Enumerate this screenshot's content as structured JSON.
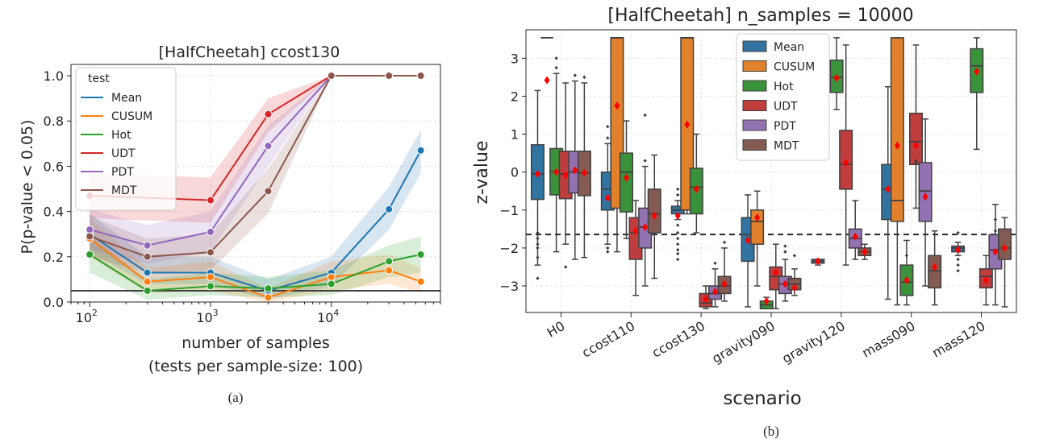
{
  "chart_data": [
    {
      "type": "line",
      "title": "[HalfCheetah] ccost130",
      "xlabel": "number of samples",
      "xlabel2": "(tests per sample-size: 100)",
      "ylabel": "P(p-value < 0.05)",
      "caption": "(a)",
      "x_scale": "log",
      "xlim": [
        70,
        80000
      ],
      "ylim": [
        0,
        1.05
      ],
      "x_ticks": [
        {
          "v": 100,
          "b": "10",
          "e": "2"
        },
        {
          "v": 1000,
          "b": "10",
          "e": "3"
        },
        {
          "v": 10000,
          "b": "10",
          "e": "4"
        }
      ],
      "y_ticks": [
        {
          "v": 0,
          "label": "0.0"
        },
        {
          "v": 0.2,
          "label": "0.2"
        },
        {
          "v": 0.4,
          "label": "0.4"
        },
        {
          "v": 0.6,
          "label": "0.6"
        },
        {
          "v": 0.8,
          "label": "0.8"
        },
        {
          "v": 1.0,
          "label": "1.0"
        }
      ],
      "threshold": 0.05,
      "grid": true,
      "legend_title": "test",
      "legend_position": "upper-left",
      "x": [
        100,
        300,
        1000,
        3000,
        10000,
        30000,
        55000
      ],
      "series": [
        {
          "name": "Mean",
          "color": "#1f77b4",
          "values": [
            0.3,
            0.13,
            0.13,
            0.05,
            0.13,
            0.41,
            0.67
          ],
          "lower": [
            0.22,
            0.08,
            0.08,
            0.01,
            0.07,
            0.32,
            0.57
          ],
          "upper": [
            0.39,
            0.2,
            0.2,
            0.1,
            0.2,
            0.51,
            0.76
          ]
        },
        {
          "name": "CUSUM",
          "color": "#ff7f0e",
          "values": [
            0.28,
            0.09,
            0.11,
            0.02,
            0.11,
            0.14,
            0.09
          ],
          "lower": [
            0.2,
            0.04,
            0.05,
            0.0,
            0.05,
            0.08,
            0.04
          ],
          "upper": [
            0.37,
            0.15,
            0.18,
            0.06,
            0.18,
            0.21,
            0.15
          ]
        },
        {
          "name": "Hot",
          "color": "#2ca02c",
          "values": [
            0.21,
            0.05,
            0.07,
            0.06,
            0.08,
            0.18,
            0.21
          ],
          "lower": [
            0.13,
            0.01,
            0.03,
            0.02,
            0.03,
            0.11,
            0.13
          ],
          "upper": [
            0.29,
            0.1,
            0.13,
            0.11,
            0.14,
            0.25,
            0.29
          ]
        },
        {
          "name": "UDT",
          "color": "#d62728",
          "values": [
            0.47,
            null,
            0.45,
            0.83,
            1.0,
            1.0,
            1.0
          ],
          "lower": [
            0.37,
            null,
            0.35,
            0.75,
            1.0,
            1.0,
            1.0
          ],
          "upper": [
            0.57,
            null,
            0.55,
            0.9,
            1.0,
            1.0,
            1.0
          ]
        },
        {
          "name": "PDT",
          "color": "#9467bd",
          "values": [
            0.32,
            0.25,
            0.31,
            0.69,
            1.0,
            1.0,
            1.0
          ],
          "lower": [
            0.23,
            0.17,
            0.22,
            0.6,
            1.0,
            1.0,
            1.0
          ],
          "upper": [
            0.41,
            0.34,
            0.4,
            0.78,
            1.0,
            1.0,
            1.0
          ]
        },
        {
          "name": "MDT",
          "color": "#8c564b",
          "values": [
            0.29,
            0.2,
            0.22,
            0.49,
            1.0,
            1.0,
            1.0
          ],
          "lower": [
            0.2,
            0.13,
            0.14,
            0.39,
            1.0,
            1.0,
            1.0
          ],
          "upper": [
            0.38,
            0.28,
            0.3,
            0.59,
            1.0,
            1.0,
            1.0
          ]
        }
      ]
    },
    {
      "type": "box",
      "title": "[HalfCheetah] n_samples = 10000",
      "xlabel": "scenario",
      "ylabel": "z-value",
      "caption": "(b)",
      "ylim": [
        -3.7,
        3.75
      ],
      "y_ticks": [
        {
          "v": 3,
          "label": "3"
        },
        {
          "v": 2,
          "label": "2"
        },
        {
          "v": 1,
          "label": "1"
        },
        {
          "v": 0,
          "label": "0"
        },
        {
          "v": -1,
          "label": "−1"
        },
        {
          "v": -2,
          "label": "−2"
        },
        {
          "v": -3,
          "label": "−3"
        }
      ],
      "threshold": -1.645,
      "grid": true,
      "legend_position": "upper-center",
      "categories": [
        "H0",
        "ccost110",
        "ccost130",
        "gravity090",
        "gravity120",
        "mass090",
        "mass120"
      ],
      "tests": [
        {
          "name": "Mean",
          "color": "#3274a1"
        },
        {
          "name": "CUSUM",
          "color": "#e1812c"
        },
        {
          "name": "Hot",
          "color": "#3a923a"
        },
        {
          "name": "UDT",
          "color": "#c03d3e"
        },
        {
          "name": "PDT",
          "color": "#9372b2"
        },
        {
          "name": "MDT",
          "color": "#845b53"
        }
      ],
      "boxes": [
        [
          {
            "q1": -0.72,
            "med": -0.05,
            "q3": 0.72,
            "wlo": -2.45,
            "whi": 2.15,
            "mean": -0.05,
            "out": [
              -1.6,
              -1.75,
              -1.9,
              -2.0,
              -2.25,
              -2.8
            ]
          },
          {
            "q1": null,
            "med": 3.54,
            "q3": null,
            "wlo": null,
            "whi": null,
            "mean": 2.42,
            "out": []
          },
          {
            "q1": -0.6,
            "med": 0.02,
            "q3": 0.62,
            "wlo": -2.1,
            "whi": 2.6,
            "mean": 0.0,
            "out": [
              3.0,
              2.75
            ]
          },
          {
            "q1": -0.7,
            "med": -0.05,
            "q3": 0.55,
            "wlo": -1.9,
            "whi": 2.35,
            "mean": -0.08,
            "out": [
              -2.5
            ]
          },
          {
            "q1": -0.55,
            "med": 0.0,
            "q3": 0.55,
            "wlo": -2.3,
            "whi": 2.4,
            "mean": 0.05,
            "out": [
              2.55
            ]
          },
          {
            "q1": -0.62,
            "med": -0.02,
            "q3": 0.55,
            "wlo": -2.25,
            "whi": 2.35,
            "mean": -0.02,
            "out": [
              2.5
            ]
          }
        ],
        [
          {
            "q1": -1.0,
            "med": -0.45,
            "q3": 0.0,
            "wlo": -1.9,
            "whi": 0.75,
            "mean": -0.68,
            "out": [
              1.2,
              0.9,
              -2.0,
              -2.1
            ]
          },
          {
            "q1": -0.95,
            "med": 3.54,
            "q3": 3.54,
            "wlo": -2.1,
            "whi": 3.54,
            "mean": 1.75,
            "out": []
          },
          {
            "q1": -1.05,
            "med": 0.0,
            "q3": 0.5,
            "wlo": -1.75,
            "whi": 1.35,
            "mean": -0.15,
            "out": []
          },
          {
            "q1": -2.3,
            "med": -1.6,
            "q3": -1.2,
            "wlo": -3.25,
            "whi": -0.75,
            "mean": -1.55,
            "out": []
          },
          {
            "q1": -2.0,
            "med": -1.45,
            "q3": -0.95,
            "wlo": -3.0,
            "whi": 0.15,
            "mean": -1.45,
            "out": [
              0.3,
              1.5
            ]
          },
          {
            "q1": -1.6,
            "med": -1.1,
            "q3": -0.45,
            "wlo": -2.8,
            "whi": 0.45,
            "mean": -1.15,
            "out": []
          }
        ],
        [
          {
            "q1": -1.1,
            "med": -1.0,
            "q3": -0.9,
            "wlo": -1.25,
            "whi": -0.75,
            "mean": -1.15,
            "out": [
              -1.4,
              -1.6,
              -1.75,
              -1.9,
              -2.05,
              -2.15,
              -2.3,
              -0.6,
              -0.45
            ]
          },
          {
            "q1": -1.0,
            "med": 3.54,
            "q3": 3.54,
            "wlo": -1.1,
            "whi": 3.54,
            "mean": 1.25,
            "out": []
          },
          {
            "q1": -1.1,
            "med": -0.4,
            "q3": 0.1,
            "wlo": -1.6,
            "whi": 1.0,
            "mean": -0.45,
            "out": []
          },
          {
            "q1": -3.55,
            "med": -3.45,
            "q3": -3.2,
            "wlo": -3.6,
            "whi": -3.0,
            "mean": -3.35,
            "out": []
          },
          {
            "q1": -3.35,
            "med": -3.2,
            "q3": -3.0,
            "wlo": -3.55,
            "whi": -2.55,
            "mean": -3.15,
            "out": [
              -2.4
            ]
          },
          {
            "q1": -3.2,
            "med": -3.0,
            "q3": -2.75,
            "wlo": -3.4,
            "whi": -2.0,
            "mean": -2.95,
            "out": [
              -1.85
            ]
          }
        ],
        [
          {
            "q1": -2.35,
            "med": -1.65,
            "q3": -1.2,
            "wlo": -3.55,
            "whi": -0.6,
            "mean": -1.8,
            "out": []
          },
          {
            "q1": -1.9,
            "med": -1.3,
            "q3": -1.0,
            "wlo": -3.0,
            "whi": -0.5,
            "mean": -1.2,
            "out": []
          },
          {
            "q1": -3.6,
            "med": -3.5,
            "q3": -3.4,
            "wlo": -3.6,
            "whi": -3.3,
            "mean": -3.4,
            "out": []
          },
          {
            "q1": -3.1,
            "med": -2.75,
            "q3": -2.5,
            "wlo": -3.6,
            "whi": -1.9,
            "mean": -2.65,
            "out": []
          },
          {
            "q1": -3.2,
            "med": -2.95,
            "q3": -2.75,
            "wlo": -3.4,
            "whi": -2.3,
            "mean": -2.95,
            "out": [
              -2.1,
              -1.95
            ]
          },
          {
            "q1": -3.1,
            "med": -2.95,
            "q3": -2.8,
            "wlo": -3.25,
            "whi": -2.55,
            "mean": -3.05,
            "out": [
              -2.2
            ]
          }
        ],
        [
          {
            "q1": -2.4,
            "med": -2.35,
            "q3": -2.3,
            "wlo": -2.45,
            "whi": -2.3,
            "mean": -2.35,
            "out": []
          },
          {
            "q1": null,
            "med": null,
            "q3": null,
            "wlo": null,
            "whi": null,
            "mean": null,
            "out": []
          },
          {
            "q1": 2.1,
            "med": 2.5,
            "q3": 2.95,
            "wlo": 1.65,
            "whi": 3.54,
            "mean": 2.48,
            "out": []
          },
          {
            "q1": -0.45,
            "med": 0.2,
            "q3": 1.1,
            "wlo": -2.45,
            "whi": 3.35,
            "mean": 0.25,
            "out": []
          },
          {
            "q1": -2.0,
            "med": -1.75,
            "q3": -1.5,
            "wlo": -2.3,
            "whi": -0.75,
            "mean": -1.7,
            "out": []
          },
          {
            "q1": -2.2,
            "med": -2.1,
            "q3": -2.0,
            "wlo": -2.3,
            "whi": -1.9,
            "mean": -2.1,
            "out": []
          }
        ],
        [
          {
            "q1": -1.25,
            "med": -0.45,
            "q3": 0.2,
            "wlo": -3.35,
            "whi": 2.25,
            "mean": -0.45,
            "out": []
          },
          {
            "q1": -1.3,
            "med": -0.75,
            "q3": 3.54,
            "wlo": -3.5,
            "whi": 3.54,
            "mean": 0.7,
            "out": []
          },
          {
            "q1": -3.25,
            "med": -2.9,
            "q3": -2.45,
            "wlo": -3.5,
            "whi": -1.8,
            "mean": -2.85,
            "out": [
              -2.2
            ]
          },
          {
            "q1": 0.2,
            "med": 0.8,
            "q3": 1.55,
            "wlo": -0.95,
            "whi": 3.35,
            "mean": 0.7,
            "out": [
              0.25,
              0.3
            ]
          },
          {
            "q1": -1.3,
            "med": -0.5,
            "q3": 0.25,
            "wlo": -3.0,
            "whi": 1.4,
            "mean": -0.65,
            "out": []
          },
          {
            "q1": -3.05,
            "med": -2.6,
            "q3": -2.2,
            "wlo": -3.5,
            "whi": -1.55,
            "mean": -2.5,
            "out": []
          }
        ],
        [
          {
            "q1": -2.1,
            "med": -2.0,
            "q3": -1.95,
            "wlo": -2.2,
            "whi": -1.85,
            "mean": -2.05,
            "out": [
              -2.3,
              -2.45,
              -2.6,
              -1.6
            ]
          },
          {
            "q1": null,
            "med": null,
            "q3": null,
            "wlo": null,
            "whi": null,
            "mean": null,
            "out": []
          },
          {
            "q1": 2.1,
            "med": 2.8,
            "q3": 3.25,
            "wlo": 0.6,
            "whi": 3.54,
            "mean": 2.65,
            "out": []
          },
          {
            "q1": -3.05,
            "med": -2.75,
            "q3": -2.55,
            "wlo": -3.5,
            "whi": -2.2,
            "mean": -2.85,
            "out": []
          },
          {
            "q1": -2.55,
            "med": -2.05,
            "q3": -1.65,
            "wlo": -3.5,
            "whi": -0.85,
            "mean": -2.1,
            "out": [
              -1.25,
              -1.55
            ]
          },
          {
            "q1": -2.3,
            "med": -2.0,
            "q3": -1.5,
            "wlo": -3.55,
            "whi": -1.2,
            "mean": -2.0,
            "out": []
          }
        ]
      ]
    }
  ]
}
